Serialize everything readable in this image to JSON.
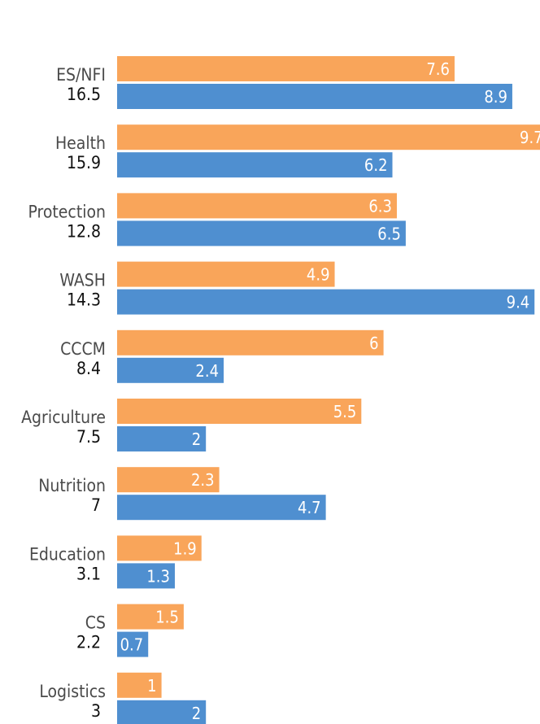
{
  "chart_data": {
    "type": "bar",
    "orientation": "horizontal",
    "categories": [
      "ES/NFI",
      "Health",
      "Protection",
      "WASH",
      "CCCM",
      "Agriculture",
      "Nutrition",
      "Education",
      "CS",
      "Logistics"
    ],
    "totals": [
      "16.5",
      "15.9",
      "12.8",
      "14.3",
      "8.4",
      "7.5",
      "7",
      "3.1",
      "2.2",
      "3"
    ],
    "series": [
      {
        "values": [
          7.6,
          9.7,
          6.3,
          4.9,
          6,
          5.5,
          2.3,
          1.9,
          1.5,
          1
        ],
        "color": "#f9a55a"
      },
      {
        "values": [
          8.9,
          6.2,
          6.5,
          9.4,
          2.4,
          2,
          4.7,
          1.3,
          0.7,
          2
        ],
        "color": "#4f8fd0"
      }
    ],
    "value_labels_1": [
      "7.6",
      "9.7",
      "6.3",
      "4.9",
      "6",
      "5.5",
      "2.3",
      "1.9",
      "1.5",
      "1"
    ],
    "value_labels_2": [
      "8.9",
      "6.2",
      "6.5",
      "9.4",
      "2.4",
      "2",
      "4.7",
      "1.3",
      "0.7",
      "2"
    ],
    "xlim": [
      0,
      9.8
    ],
    "grid": false,
    "legend": "none"
  }
}
